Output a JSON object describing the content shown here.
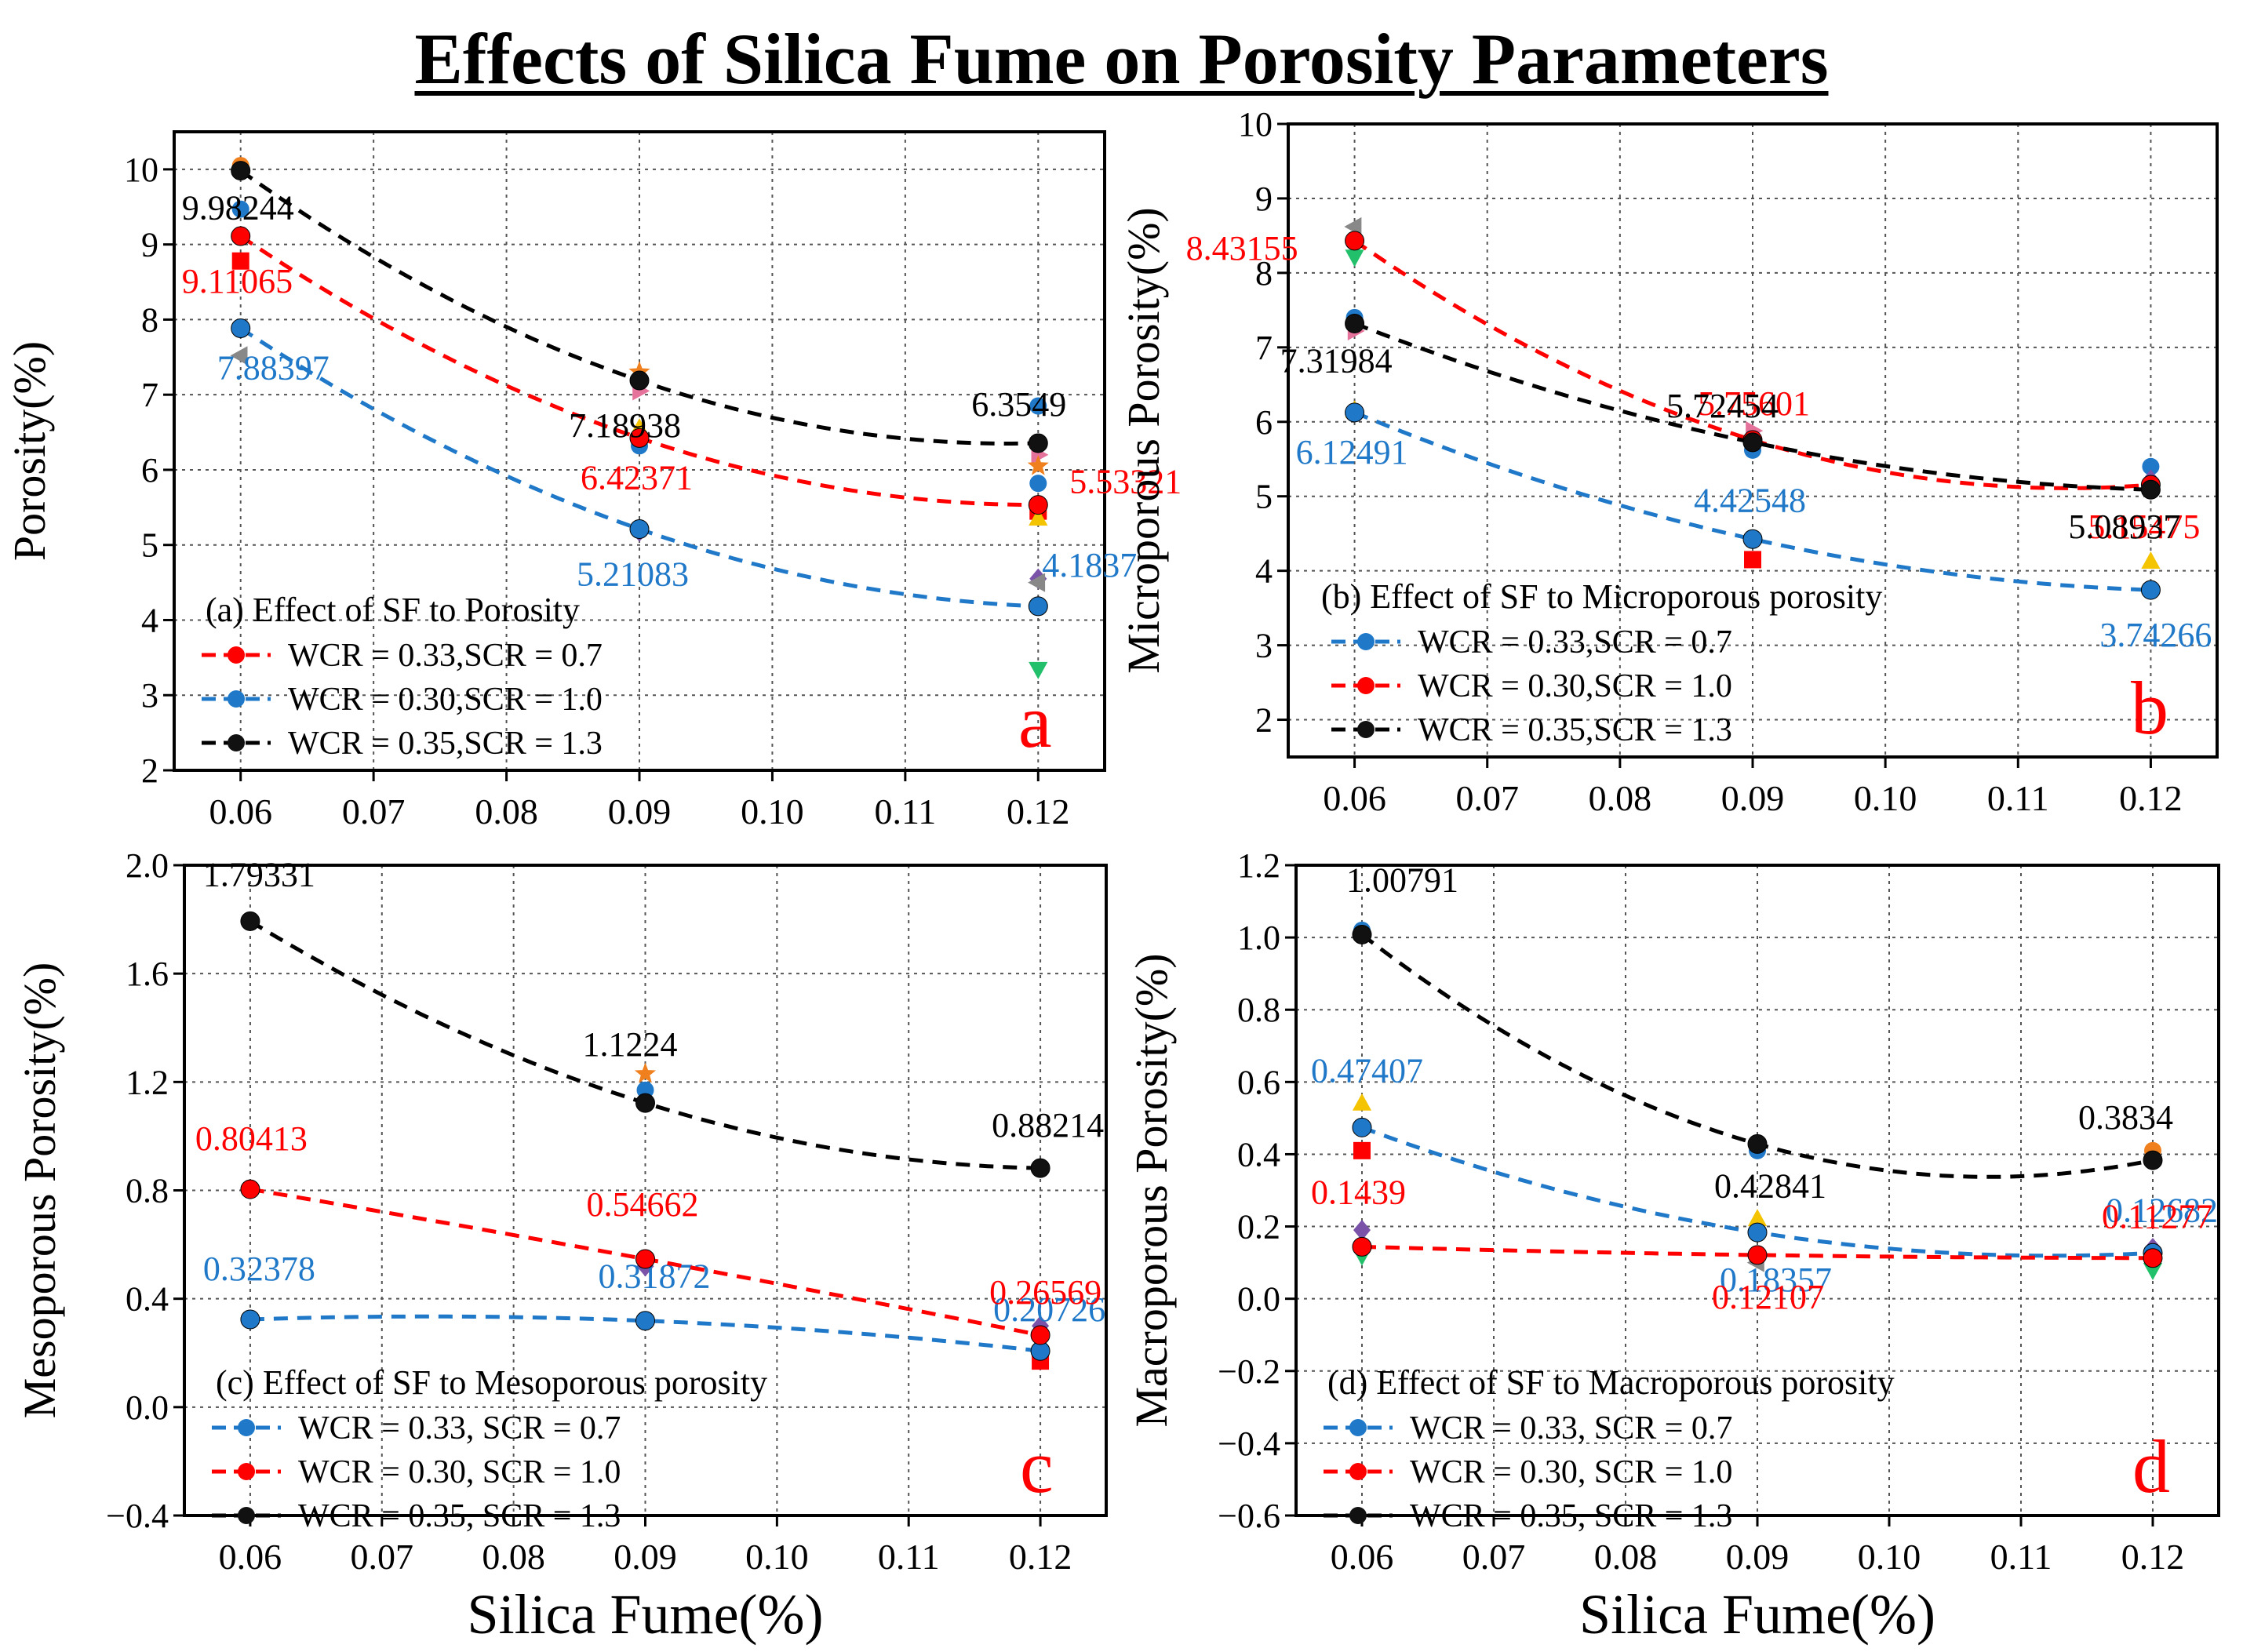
{
  "figure": {
    "title": "Effects of Silica Fume on Porosity Parameters"
  },
  "colors": {
    "red": "#ff0000",
    "blue": "#1f78c8",
    "black": "#000000",
    "grid": "#555555"
  },
  "chart_data": [
    {
      "id": "a",
      "type": "line",
      "panel_letter": "a",
      "ylabel": "Porosity(%)",
      "xlabel": "",
      "caption": "(a) Effect of SF to Porosity",
      "x": [
        0.06,
        0.09,
        0.12
      ],
      "xlim": [
        0.055,
        0.125
      ],
      "xticks": [
        "0.06",
        "0.07",
        "0.08",
        "0.09",
        "0.10",
        "0.11",
        "0.12"
      ],
      "ylim": [
        2,
        10.5
      ],
      "yticks": [
        "2",
        "3",
        "4",
        "5",
        "6",
        "7",
        "8",
        "9",
        "10"
      ],
      "series": [
        {
          "name": "WCR = 0.33,SCR = 0.7",
          "color": "red",
          "values": [
            9.11065,
            6.42371,
            5.53321
          ],
          "labels": [
            "9.11065",
            "6.42371",
            "5.53321"
          ]
        },
        {
          "name": "WCR = 0.30,SCR = 1.0",
          "color": "blue",
          "values": [
            7.88397,
            5.21083,
            4.1837
          ],
          "labels": [
            "7.88397",
            "5.21083",
            "4.1837"
          ]
        },
        {
          "name": "WCR = 0.35,SCR = 1.3",
          "color": "black",
          "values": [
            9.98244,
            7.18938,
            6.3549
          ],
          "labels": [
            "9.98244",
            "7.18938",
            "6.3549"
          ]
        }
      ],
      "scatter": [
        {
          "x": 0.06,
          "y": 10.05,
          "color": "#f07f1e",
          "shape": "circle"
        },
        {
          "x": 0.06,
          "y": 9.47,
          "color": "#1f78c8",
          "shape": "circle"
        },
        {
          "x": 0.06,
          "y": 8.78,
          "color": "#ff0000",
          "shape": "square"
        },
        {
          "x": 0.06,
          "y": 7.52,
          "color": "#888888",
          "shape": "tri-left"
        },
        {
          "x": 0.09,
          "y": 7.3,
          "color": "#f07f1e",
          "shape": "star"
        },
        {
          "x": 0.09,
          "y": 7.05,
          "color": "#e5729b",
          "shape": "tri-right"
        },
        {
          "x": 0.09,
          "y": 6.55,
          "color": "#f5c400",
          "shape": "tri-up"
        },
        {
          "x": 0.09,
          "y": 6.32,
          "color": "#1f78c8",
          "shape": "circle"
        },
        {
          "x": 0.09,
          "y": 5.18,
          "color": "#7a52a8",
          "shape": "diamond"
        },
        {
          "x": 0.12,
          "y": 6.85,
          "color": "#1f78c8",
          "shape": "circle"
        },
        {
          "x": 0.12,
          "y": 6.2,
          "color": "#e5729b",
          "shape": "tri-right"
        },
        {
          "x": 0.12,
          "y": 6.05,
          "color": "#f07f1e",
          "shape": "star"
        },
        {
          "x": 0.12,
          "y": 5.82,
          "color": "#1f78c8",
          "shape": "circle"
        },
        {
          "x": 0.12,
          "y": 5.45,
          "color": "#ff0000",
          "shape": "square"
        },
        {
          "x": 0.12,
          "y": 5.35,
          "color": "#f5c400",
          "shape": "tri-up"
        },
        {
          "x": 0.12,
          "y": 4.55,
          "color": "#7a52a8",
          "shape": "diamond"
        },
        {
          "x": 0.12,
          "y": 4.5,
          "color": "#888888",
          "shape": "tri-left"
        },
        {
          "x": 0.12,
          "y": 3.35,
          "color": "#22c06a",
          "shape": "tri-down"
        }
      ]
    },
    {
      "id": "b",
      "type": "line",
      "panel_letter": "b",
      "ylabel": "Microporous Porosity(%)",
      "xlabel": "",
      "caption": "(b) Effect of SF to Microporous porosity",
      "x": [
        0.06,
        0.09,
        0.12
      ],
      "xlim": [
        0.055,
        0.125
      ],
      "xticks": [
        "0.06",
        "0.07",
        "0.08",
        "0.09",
        "0.10",
        "0.11",
        "0.12"
      ],
      "ylim": [
        1.5,
        10
      ],
      "yticks": [
        "2",
        "3",
        "4",
        "5",
        "6",
        "7",
        "8",
        "9",
        "10"
      ],
      "series": [
        {
          "name": "WCR = 0.33,SCR = 0.7",
          "color": "blue",
          "values": [
            6.12491,
            4.42548,
            3.74266
          ],
          "labels": [
            "6.12491",
            "4.42548",
            "3.74266"
          ]
        },
        {
          "name": "WCR = 0.30,SCR = 1.0",
          "color": "red",
          "values": [
            8.43155,
            5.75601,
            5.15475
          ],
          "labels": [
            "8.43155",
            "5.75601",
            "5.15475"
          ]
        },
        {
          "name": "WCR = 0.35,SCR = 1.3",
          "color": "black",
          "values": [
            7.31984,
            5.72454,
            5.08937
          ],
          "labels": [
            "7.31984",
            "5.72454",
            "5.08937"
          ]
        }
      ],
      "scatter": [
        {
          "x": 0.06,
          "y": 8.62,
          "color": "#888888",
          "shape": "tri-left"
        },
        {
          "x": 0.06,
          "y": 8.22,
          "color": "#22c06a",
          "shape": "tri-down"
        },
        {
          "x": 0.06,
          "y": 7.4,
          "color": "#1f78c8",
          "shape": "circle"
        },
        {
          "x": 0.06,
          "y": 7.22,
          "color": "#e5729b",
          "shape": "tri-right"
        },
        {
          "x": 0.06,
          "y": 6.15,
          "color": "#f5c400",
          "shape": "tri-up"
        },
        {
          "x": 0.09,
          "y": 5.88,
          "color": "#e5729b",
          "shape": "tri-right"
        },
        {
          "x": 0.09,
          "y": 5.62,
          "color": "#1f78c8",
          "shape": "circle"
        },
        {
          "x": 0.09,
          "y": 4.15,
          "color": "#ff0000",
          "shape": "square"
        },
        {
          "x": 0.12,
          "y": 5.4,
          "color": "#1f78c8",
          "shape": "circle"
        },
        {
          "x": 0.12,
          "y": 5.22,
          "color": "#7a52a8",
          "shape": "diamond"
        },
        {
          "x": 0.12,
          "y": 4.12,
          "color": "#f5c400",
          "shape": "tri-up"
        }
      ]
    },
    {
      "id": "c",
      "type": "line",
      "panel_letter": "c",
      "ylabel": "Mesoporous Porosity(%)",
      "xlabel": "Silica Fume(%)",
      "caption": "(c) Effect of SF to Mesoporous porosity",
      "x": [
        0.06,
        0.09,
        0.12
      ],
      "xlim": [
        0.055,
        0.125
      ],
      "xticks": [
        "0.06",
        "0.07",
        "0.08",
        "0.09",
        "0.10",
        "0.11",
        "0.12"
      ],
      "ylim": [
        -0.4,
        2.0
      ],
      "yticks": [
        "−0.4",
        "0.0",
        "0.4",
        "0.8",
        "1.2",
        "1.6",
        "2.0"
      ],
      "series": [
        {
          "name": "WCR = 0.33, SCR = 0.7",
          "color": "blue",
          "values": [
            0.32378,
            0.31872,
            0.20726
          ],
          "labels": [
            "0.32378",
            "0.31872",
            "0.20726"
          ]
        },
        {
          "name": "WCR = 0.30, SCR = 1.0",
          "color": "red",
          "values": [
            0.80413,
            0.54662,
            0.26569
          ],
          "labels": [
            "0.80413",
            "0.54662",
            "0.26569"
          ]
        },
        {
          "name": "WCR = 0.35, SCR = 1.3",
          "color": "black",
          "values": [
            1.79331,
            1.1224,
            0.88214
          ],
          "labels": [
            "1.79331",
            "1.1224",
            "0.88214"
          ]
        }
      ],
      "scatter": [
        {
          "x": 0.09,
          "y": 1.23,
          "color": "#f07f1e",
          "shape": "star"
        },
        {
          "x": 0.09,
          "y": 1.17,
          "color": "#1f78c8",
          "shape": "circle"
        },
        {
          "x": 0.09,
          "y": 0.52,
          "color": "#7a52a8",
          "shape": "diamond"
        },
        {
          "x": 0.12,
          "y": 0.3,
          "color": "#7a52a8",
          "shape": "diamond"
        },
        {
          "x": 0.12,
          "y": 0.17,
          "color": "#ff0000",
          "shape": "square"
        }
      ]
    },
    {
      "id": "d",
      "type": "line",
      "panel_letter": "d",
      "ylabel": "Macroporous Porosity(%)",
      "xlabel": "Silica Fume(%)",
      "caption": "(d) Effect of SF to Macroporous porosity",
      "x": [
        0.06,
        0.09,
        0.12
      ],
      "xlim": [
        0.055,
        0.125
      ],
      "xticks": [
        "0.06",
        "0.07",
        "0.08",
        "0.09",
        "0.10",
        "0.11",
        "0.12"
      ],
      "ylim": [
        -0.6,
        1.2
      ],
      "yticks": [
        "−0.6",
        "−0.4",
        "−0.2",
        "0.0",
        "0.2",
        "0.4",
        "0.6",
        "0.8",
        "1.0",
        "1.2"
      ],
      "series": [
        {
          "name": "WCR = 0.33, SCR = 0.7",
          "color": "blue",
          "values": [
            0.47407,
            0.18357,
            0.12682
          ],
          "labels": [
            "0.47407",
            "0.18357",
            "0.12682"
          ]
        },
        {
          "name": "WCR = 0.30, SCR = 1.0",
          "color": "red",
          "values": [
            0.1439,
            0.12107,
            0.11277
          ],
          "labels": [
            "0.1439",
            "0.12107",
            "0.11277"
          ]
        },
        {
          "name": "WCR = 0.35, SCR = 1.3",
          "color": "black",
          "values": [
            1.00791,
            0.42841,
            0.3834
          ],
          "labels": [
            "1.00791",
            "0.42841",
            "0.3834"
          ]
        }
      ],
      "scatter": [
        {
          "x": 0.06,
          "y": 1.02,
          "color": "#1f78c8",
          "shape": "circle"
        },
        {
          "x": 0.06,
          "y": 0.54,
          "color": "#f5c400",
          "shape": "tri-up"
        },
        {
          "x": 0.06,
          "y": 0.41,
          "color": "#ff0000",
          "shape": "square"
        },
        {
          "x": 0.06,
          "y": 0.19,
          "color": "#7a52a8",
          "shape": "diamond"
        },
        {
          "x": 0.06,
          "y": 0.12,
          "color": "#22c06a",
          "shape": "tri-down"
        },
        {
          "x": 0.09,
          "y": 0.41,
          "color": "#1f78c8",
          "shape": "circle"
        },
        {
          "x": 0.09,
          "y": 0.22,
          "color": "#f5c400",
          "shape": "tri-up"
        },
        {
          "x": 0.09,
          "y": 0.1,
          "color": "#888888",
          "shape": "tri-left"
        },
        {
          "x": 0.12,
          "y": 0.41,
          "color": "#f07f1e",
          "shape": "circle"
        },
        {
          "x": 0.12,
          "y": 0.14,
          "color": "#7a52a8",
          "shape": "diamond"
        },
        {
          "x": 0.12,
          "y": 0.08,
          "color": "#22c06a",
          "shape": "tri-down"
        }
      ]
    }
  ]
}
